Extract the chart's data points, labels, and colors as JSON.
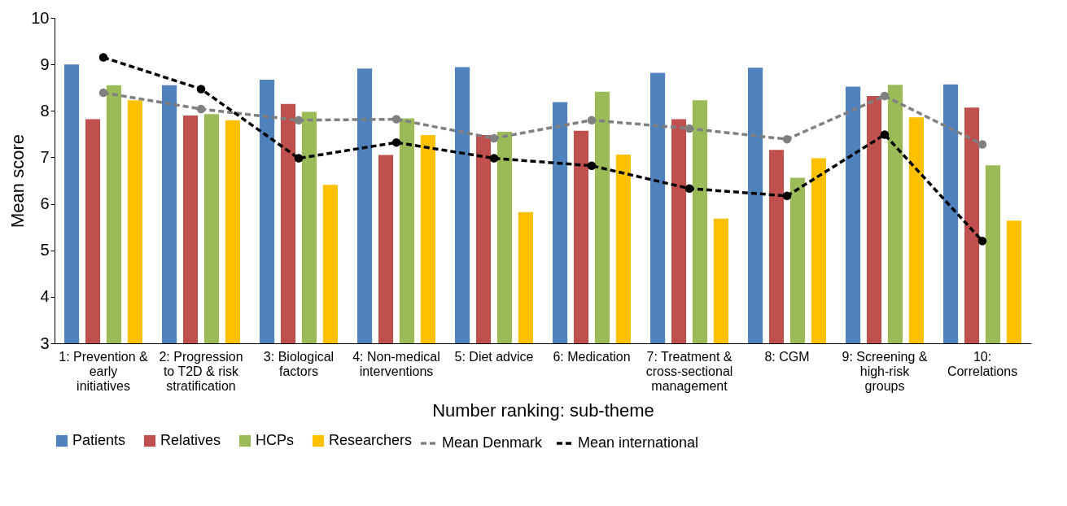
{
  "chart_data": {
    "type": "bar",
    "xlabel": "Number ranking: sub-theme",
    "ylabel": "Mean score",
    "categories": [
      "1: Prevention & early initiatives",
      "2: Progression to T2D & risk stratification",
      "3: Biological factors",
      "4: Non-medical interventions",
      "5: Diet advice",
      "6: Medication",
      "7: Treatment & cross-sectional management",
      "8: CGM",
      "9: Screening & high-risk groups",
      "10: Correlations"
    ],
    "series": [
      {
        "name": "Patients",
        "color": "#4f81bd",
        "values": [
          9.0,
          8.55,
          8.67,
          8.91,
          8.94,
          8.19,
          8.82,
          8.93,
          8.52,
          8.57
        ]
      },
      {
        "name": "Relatives",
        "color": "#c0504d",
        "values": [
          7.82,
          7.9,
          8.15,
          7.05,
          7.48,
          7.57,
          7.82,
          7.16,
          8.32,
          8.07
        ]
      },
      {
        "name": "HCPs",
        "color": "#9bbb59",
        "values": [
          8.55,
          7.93,
          7.98,
          7.84,
          7.55,
          8.41,
          8.23,
          6.56,
          8.56,
          6.83
        ]
      },
      {
        "name": "Researchers",
        "color": "#ffc000",
        "values": [
          8.23,
          7.8,
          6.41,
          7.48,
          5.82,
          7.06,
          5.68,
          6.98,
          7.86,
          5.64
        ]
      },
      {
        "name": "Mean Denmark",
        "type": "line",
        "color": "#808080",
        "values": [
          8.39,
          8.04,
          7.8,
          7.82,
          7.41,
          7.8,
          7.62,
          7.39,
          8.32,
          7.28
        ]
      },
      {
        "name": "Mean international",
        "type": "line",
        "color": "#000000",
        "values": [
          9.15,
          8.47,
          6.98,
          7.32,
          6.98,
          6.82,
          6.33,
          6.17,
          7.49,
          5.2
        ]
      }
    ],
    "ylim": [
      3,
      10
    ],
    "yticks": [
      3,
      4,
      5,
      6,
      7,
      8,
      9,
      10
    ],
    "grid": false,
    "legend": "bottom",
    "marker": "circle",
    "line_style": "dashed"
  }
}
